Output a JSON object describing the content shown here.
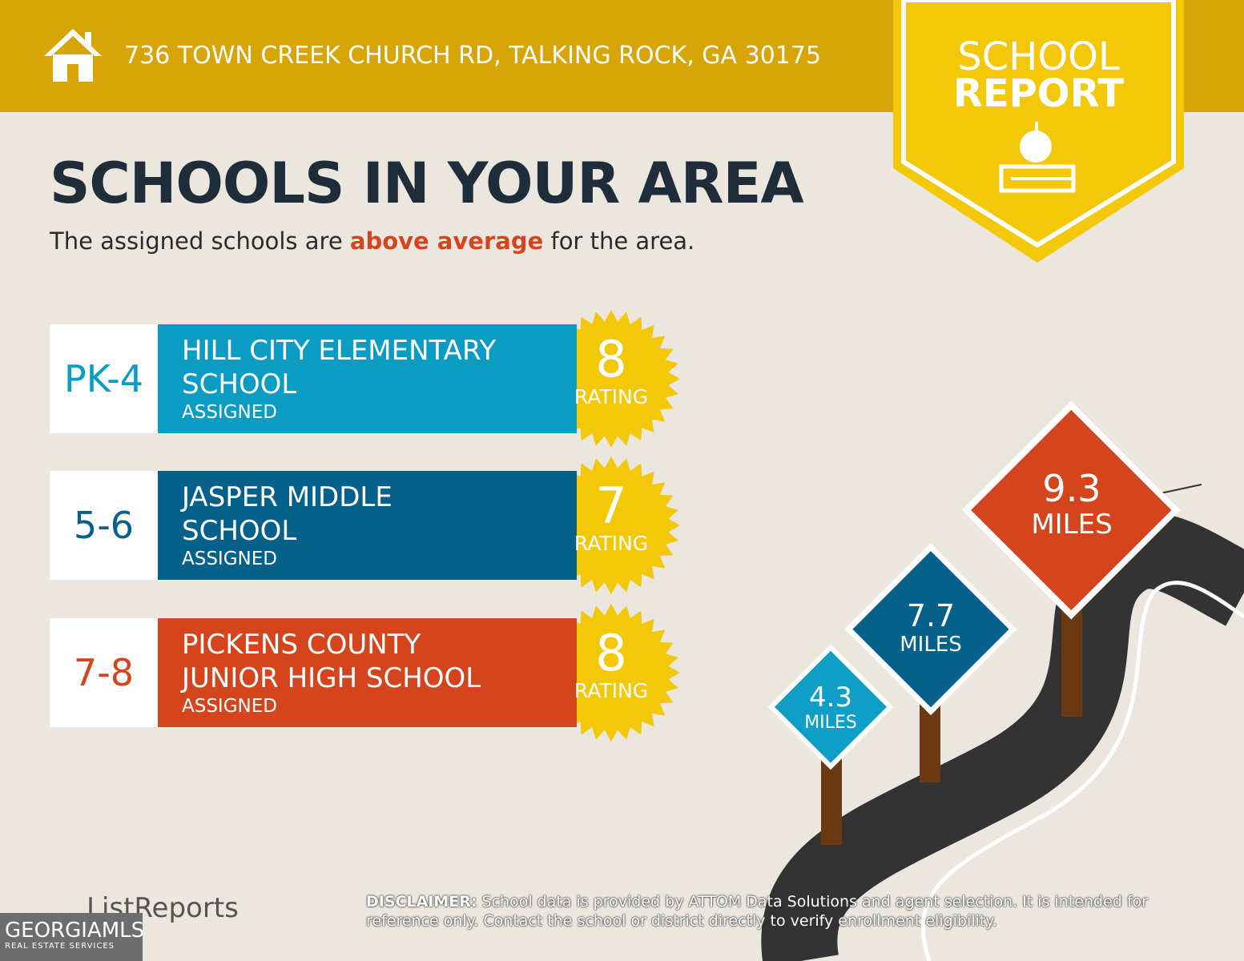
{
  "header": {
    "address": "736 TOWN CREEK CHURCH RD, TALKING ROCK, GA 30175",
    "badge_line1": "SCHOOL",
    "badge_line2": "REPORT"
  },
  "title": "SCHOOLS IN YOUR AREA",
  "subtitle": {
    "before": "The assigned schools are",
    "emphasis": "above average",
    "after": "for the area."
  },
  "schools": [
    {
      "grades": "PK-4",
      "name_line1": "HILL CITY ELEMENTARY",
      "name_line2": "SCHOOL",
      "status": "ASSIGNED",
      "rating": 8,
      "rating_label": "RATING"
    },
    {
      "grades": "5-6",
      "name_line1": "JASPER MIDDLE",
      "name_line2": "SCHOOL",
      "status": "ASSIGNED",
      "rating": 7,
      "rating_label": "RATING"
    },
    {
      "grades": "7-8",
      "name_line1": "PICKENS COUNTY",
      "name_line2": "JUNIOR HIGH SCHOOL",
      "status": "ASSIGNED",
      "rating": 8,
      "rating_label": "RATING"
    }
  ],
  "distances": [
    {
      "value": "4.3",
      "unit": "MILES"
    },
    {
      "value": "7.7",
      "unit": "MILES"
    },
    {
      "value": "9.3",
      "unit": "MILES"
    }
  ],
  "footer": {
    "brand": "ListReports",
    "disclaimer_label": "DISCLAIMER:",
    "disclaimer": "School data is provided by ATTOM Data Solutions and agent selection. It is intended for reference only. Contact the school or district directly to verify enrollment eligibility.",
    "mls": "GEORGIAMLS",
    "mls_sub": "REAL ESTATE SERVICES"
  }
}
